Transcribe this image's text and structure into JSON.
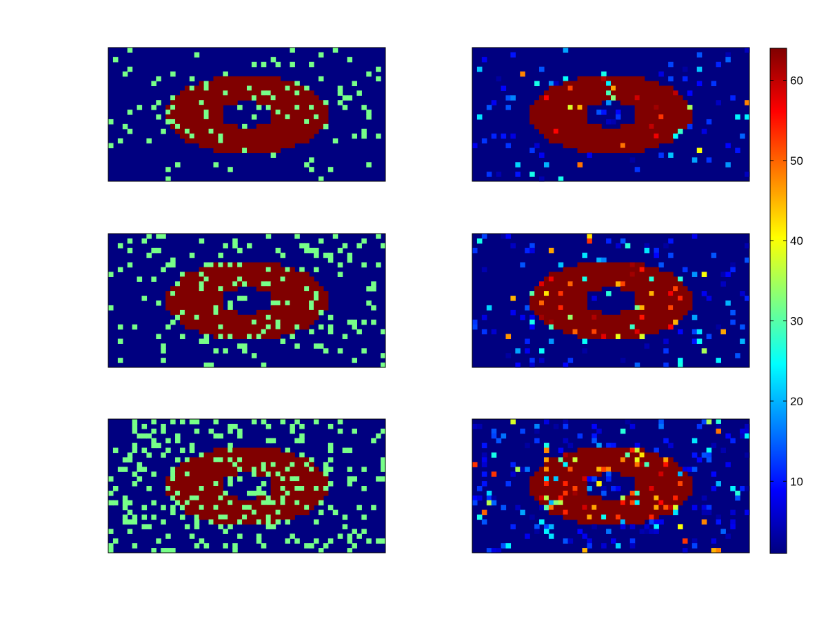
{
  "chart_data": {
    "type": "heatmap",
    "layout": "3 rows x 2 columns of image panels sharing one colorbar",
    "grid_resolution": "approximately 58 x 28 cells per panel",
    "colormap": "jet",
    "color_range": [
      1,
      64
    ],
    "background_value": 1,
    "ring_value": 64,
    "panels": [
      {
        "row": 1,
        "col": 1,
        "noise": "sparse",
        "noise_value": 32,
        "description": "red ring (value 64) on blue background (value 1) with scattered green pixels (value ~32)"
      },
      {
        "row": 1,
        "col": 2,
        "noise": "sparse",
        "description": "reconstructed ring: mostly value 64, scattered values 5-50 around edges"
      },
      {
        "row": 2,
        "col": 1,
        "noise": "medium",
        "noise_value": 32,
        "description": "red ring on blue background with more scattered green pixels"
      },
      {
        "row": 2,
        "col": 2,
        "noise": "medium",
        "description": "reconstructed ring with scattered intermediate values"
      },
      {
        "row": 3,
        "col": 1,
        "noise": "dense",
        "noise_value": 32,
        "description": "red ring on blue background with dense green pixel noise"
      },
      {
        "row": 3,
        "col": 2,
        "noise": "dense",
        "description": "reconstructed ring with many intermediate values and streaks"
      }
    ],
    "colorbar": {
      "ticks": [
        10,
        20,
        30,
        40,
        50,
        60
      ],
      "range": [
        1,
        64
      ]
    },
    "title": "",
    "xlabel": "",
    "ylabel": ""
  }
}
